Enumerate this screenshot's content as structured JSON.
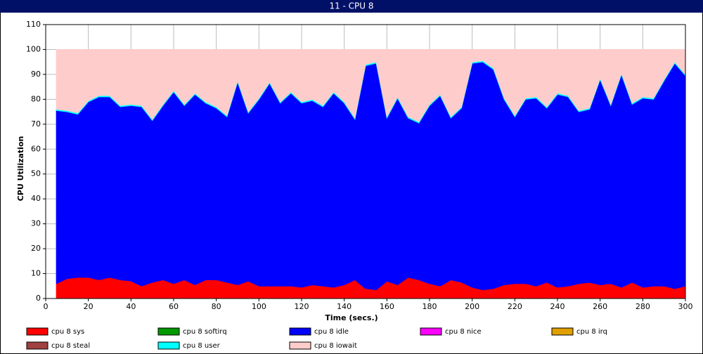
{
  "chart_data": {
    "type": "stacked_area",
    "title": "11 - CPU 8",
    "x_label": "Time (secs.)",
    "y_label": "CPU Utilization",
    "xlim": [
      0,
      300
    ],
    "ylim": [
      0,
      110
    ],
    "xticks": [
      0,
      20,
      40,
      60,
      80,
      100,
      120,
      140,
      160,
      180,
      200,
      220,
      240,
      260,
      280,
      300
    ],
    "yticks": [
      0,
      10,
      20,
      30,
      40,
      50,
      60,
      70,
      80,
      90,
      100,
      110
    ],
    "grid": true,
    "x": [
      5,
      10,
      15,
      20,
      25,
      30,
      35,
      40,
      45,
      50,
      55,
      60,
      65,
      70,
      75,
      80,
      85,
      90,
      95,
      100,
      105,
      110,
      115,
      120,
      125,
      130,
      135,
      140,
      145,
      150,
      155,
      160,
      165,
      170,
      175,
      180,
      185,
      190,
      195,
      200,
      205,
      210,
      215,
      220,
      225,
      230,
      235,
      240,
      245,
      250,
      255,
      260,
      265,
      270,
      275,
      280,
      285,
      290,
      295,
      300
    ],
    "series": [
      {
        "name": "cpu 8 sys",
        "color": "#ff0000",
        "values": [
          6,
          8,
          8.5,
          8.5,
          7.5,
          8.5,
          7.5,
          7,
          5,
          6.5,
          7.5,
          6,
          7.5,
          5.5,
          7.5,
          7.5,
          6.5,
          5.5,
          7,
          5,
          5,
          5,
          5,
          4.5,
          5.5,
          5,
          4.5,
          5.5,
          7.5,
          4,
          3.5,
          7,
          5.5,
          8.5,
          7.5,
          6,
          5,
          7.5,
          6.5,
          4.5,
          3.5,
          4,
          5.5,
          6,
          6,
          5,
          6.5,
          4.5,
          5,
          6,
          6.5,
          5.5,
          6,
          4.5,
          6.5,
          4.5,
          5,
          5,
          4,
          5
        ]
      },
      {
        "name": "cpu 8 softirq",
        "color": "#009900",
        "values": [
          0,
          0,
          0,
          0,
          0,
          0,
          0,
          0,
          0,
          0,
          0,
          0,
          0,
          0,
          0,
          0,
          0,
          0,
          0,
          0,
          0,
          0,
          0,
          0,
          0,
          0,
          0,
          0,
          0,
          0,
          0,
          0,
          0,
          0,
          0,
          0,
          0,
          0,
          0,
          0,
          0,
          0,
          0,
          0,
          0,
          0,
          0,
          0,
          0,
          0,
          0,
          0,
          0,
          0,
          0,
          0,
          0,
          0,
          0,
          0
        ]
      },
      {
        "name": "cpu 8 idle",
        "color": "#0000ff",
        "values": [
          69.5,
          67,
          65.5,
          70.5,
          73.5,
          72.5,
          69.5,
          70.5,
          72,
          65,
          70,
          77,
          70,
          76.5,
          71,
          69,
          66.5,
          81.5,
          67.5,
          75,
          81.5,
          73.5,
          77.5,
          74,
          74,
          72,
          78,
          73,
          64.5,
          89.5,
          91,
          65.5,
          75,
          64,
          63,
          71.5,
          76.5,
          65,
          70,
          90,
          91.5,
          88,
          74.5,
          67,
          74,
          75.5,
          70,
          77.5,
          76,
          69,
          69.5,
          82.5,
          71.5,
          85.5,
          71.5,
          76,
          75,
          82.5,
          90.5,
          84.5
        ]
      },
      {
        "name": "cpu 8 nice",
        "color": "#ff00ff",
        "values": [
          0,
          0,
          0,
          0,
          0,
          0,
          0,
          0,
          0,
          0,
          0,
          0,
          0,
          0,
          0,
          0,
          0,
          0,
          0,
          0,
          0,
          0,
          0,
          0,
          0,
          0,
          0,
          0,
          0,
          0,
          0,
          0,
          0,
          0,
          0,
          0,
          0,
          0,
          0,
          0,
          0,
          0,
          0,
          0,
          0,
          0,
          0,
          0,
          0,
          0,
          0,
          0,
          0,
          0,
          0,
          0,
          0,
          0,
          0,
          0
        ]
      },
      {
        "name": "cpu 8 irq",
        "color": "#e0a000",
        "values": [
          0,
          0,
          0,
          0,
          0,
          0,
          0,
          0,
          0,
          0,
          0,
          0,
          0,
          0,
          0,
          0,
          0,
          0,
          0,
          0,
          0,
          0,
          0,
          0,
          0,
          0,
          0,
          0,
          0,
          0,
          0,
          0,
          0,
          0,
          0,
          0,
          0,
          0,
          0,
          0,
          0,
          0,
          0,
          0,
          0,
          0,
          0,
          0,
          0,
          0,
          0,
          0,
          0,
          0,
          0,
          0,
          0,
          0,
          0,
          0
        ]
      },
      {
        "name": "cpu 8 steal",
        "color": "#a04040",
        "values": [
          0,
          0,
          0,
          0,
          0,
          0,
          0,
          0,
          0,
          0,
          0,
          0,
          0,
          0,
          0,
          0,
          0,
          0,
          0,
          0,
          0,
          0,
          0,
          0,
          0,
          0,
          0,
          0,
          0,
          0,
          0,
          0,
          0,
          0,
          0,
          0,
          0,
          0,
          0,
          0,
          0,
          0,
          0,
          0,
          0,
          0,
          0,
          0,
          0,
          0,
          0,
          0,
          0,
          0,
          0,
          0,
          0,
          0,
          0,
          0
        ]
      },
      {
        "name": "cpu 8 user",
        "color": "#00ffff",
        "values": [
          0.5,
          0.5,
          0.5,
          0.5,
          0.5,
          0.5,
          0.5,
          0.5,
          0.5,
          0.5,
          0.5,
          0.5,
          0.5,
          0.5,
          0.5,
          0.5,
          0.5,
          0.5,
          0.5,
          0.5,
          0.5,
          0.5,
          0.5,
          0.5,
          0.5,
          0.5,
          0.5,
          0.5,
          0.5,
          0.5,
          0.5,
          0.5,
          0.5,
          0.5,
          0.5,
          0.5,
          0.5,
          0.5,
          0.5,
          0.5,
          0.5,
          0.5,
          0.5,
          0.5,
          0.5,
          0.5,
          0.5,
          0.5,
          0.5,
          0.5,
          0.5,
          0.5,
          0.5,
          0.5,
          0.5,
          0.5,
          0.5,
          0.5,
          0.5,
          0.5
        ]
      },
      {
        "name": "cpu 8 iowait",
        "color": "#ffcccc",
        "values": [
          24,
          24.5,
          25.5,
          20.5,
          18.5,
          18.5,
          22.5,
          22,
          22.5,
          28,
          22,
          16.5,
          22,
          17.5,
          21,
          23,
          26.5,
          12.5,
          25,
          19.5,
          13,
          21,
          17,
          21,
          20,
          22.5,
          17,
          21,
          27.5,
          6,
          5,
          27,
          19,
          27,
          29,
          22,
          18,
          27,
          23,
          5,
          4.5,
          7.5,
          19.5,
          26.5,
          19.5,
          19,
          23,
          17.5,
          18.5,
          24.5,
          23.5,
          11.5,
          22,
          9.5,
          21.5,
          19,
          19.5,
          12,
          5,
          10
        ]
      }
    ]
  }
}
